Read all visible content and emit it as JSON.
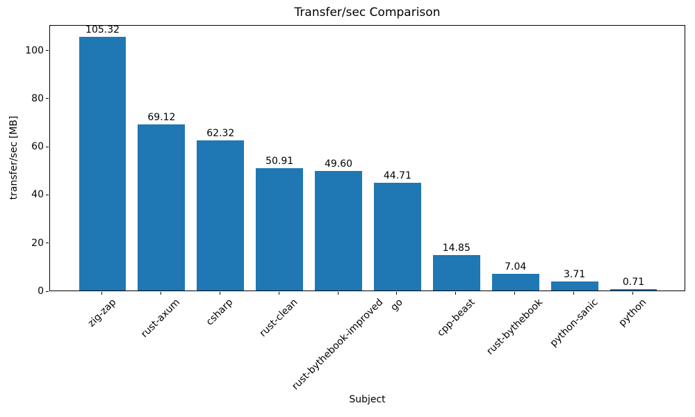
{
  "chart_data": {
    "type": "bar",
    "title": "Transfer/sec Comparison",
    "xlabel": "Subject",
    "ylabel": "transfer/sec [MB]",
    "categories": [
      "zig-zap",
      "rust-axum",
      "csharp",
      "rust-clean",
      "rust-bythebook-improved",
      "go",
      "cpp-beast",
      "rust-bythebook",
      "python-sanic",
      "python"
    ],
    "values": [
      105.32,
      69.12,
      62.32,
      50.91,
      49.6,
      44.71,
      14.85,
      7.04,
      3.71,
      0.71
    ],
    "value_labels": [
      "105.32",
      "69.12",
      "62.32",
      "50.91",
      "49.60",
      "44.71",
      "14.85",
      "7.04",
      "3.71",
      "0.71"
    ],
    "yticks": [
      0,
      20,
      40,
      60,
      80,
      100
    ],
    "ylim": [
      0,
      110.6
    ],
    "bar_color": "#1f77b4",
    "grid": false,
    "legend_position": "none",
    "tick_label_rotation_deg": 45
  }
}
